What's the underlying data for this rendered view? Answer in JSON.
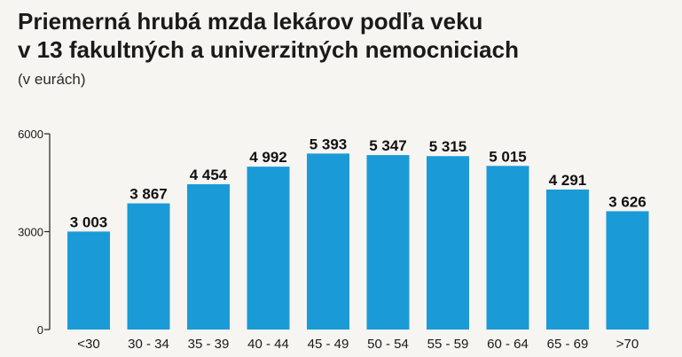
{
  "chart_data": {
    "type": "bar",
    "title_line1": "Priemerná hrubá mzda lekárov podľa veku",
    "title_line2": "v 13 fakultných a univerzitných nemocniciach",
    "subtitle": "(v eurách)",
    "categories": [
      "<30",
      "30 - 34",
      "35 - 39",
      "40 - 44",
      "45 - 49",
      "50 - 54",
      "55 - 59",
      "60 - 64",
      "65 - 69",
      ">70"
    ],
    "values": [
      3003,
      3867,
      4454,
      4992,
      5393,
      5347,
      5315,
      5015,
      4291,
      3626
    ],
    "value_labels": [
      "3 003",
      "3 867",
      "4 454",
      "4 992",
      "5 393",
      "5 347",
      "5 315",
      "5 015",
      "4 291",
      "3 626"
    ],
    "ylim": [
      0,
      6000
    ],
    "y_ticks": [
      0,
      3000,
      6000
    ],
    "y_tick_labels": [
      "0",
      "3000",
      "6000"
    ],
    "bar_color": "#1a9bd7",
    "axis_color": "#222222",
    "grid": false,
    "legend": "none"
  }
}
